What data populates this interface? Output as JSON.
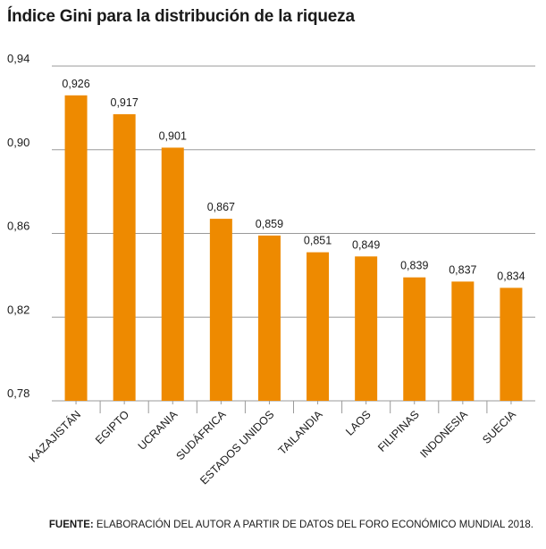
{
  "title": "Índice Gini para la distribución de la riqueza",
  "source": {
    "label": "FUENTE:",
    "text": " ELABORACIÓN DEL AUTOR A PARTIR DE DATOS DEL FORO ECONÓMICO MUNDIAL 2018."
  },
  "chart_data": {
    "type": "bar",
    "categories": [
      "KAZAJISTÁN",
      "EGIPTO",
      "UCRANIA",
      "SUDÁFRICA",
      "ESTADOS UNIDOS",
      "TAILANDIA",
      "LAOS",
      "FILIPINAS",
      "INDONESIA",
      "SUECIA"
    ],
    "values": [
      0.926,
      0.917,
      0.901,
      0.867,
      0.859,
      0.851,
      0.849,
      0.839,
      0.837,
      0.834
    ],
    "value_labels": [
      "0,926",
      "0,917",
      "0,901",
      "0,867",
      "0,859",
      "0,851",
      "0,849",
      "0,839",
      "0,837",
      "0,834"
    ],
    "ylim": [
      0.78,
      0.94
    ],
    "yticks": [
      0.78,
      0.82,
      0.86,
      0.9,
      0.94
    ],
    "ytick_labels": [
      "0,78",
      "0,82",
      "0,86",
      "0,90",
      "0,94"
    ],
    "grid": true,
    "bar_color": "#ee8a00",
    "grid_color": "#9a9a9a"
  }
}
